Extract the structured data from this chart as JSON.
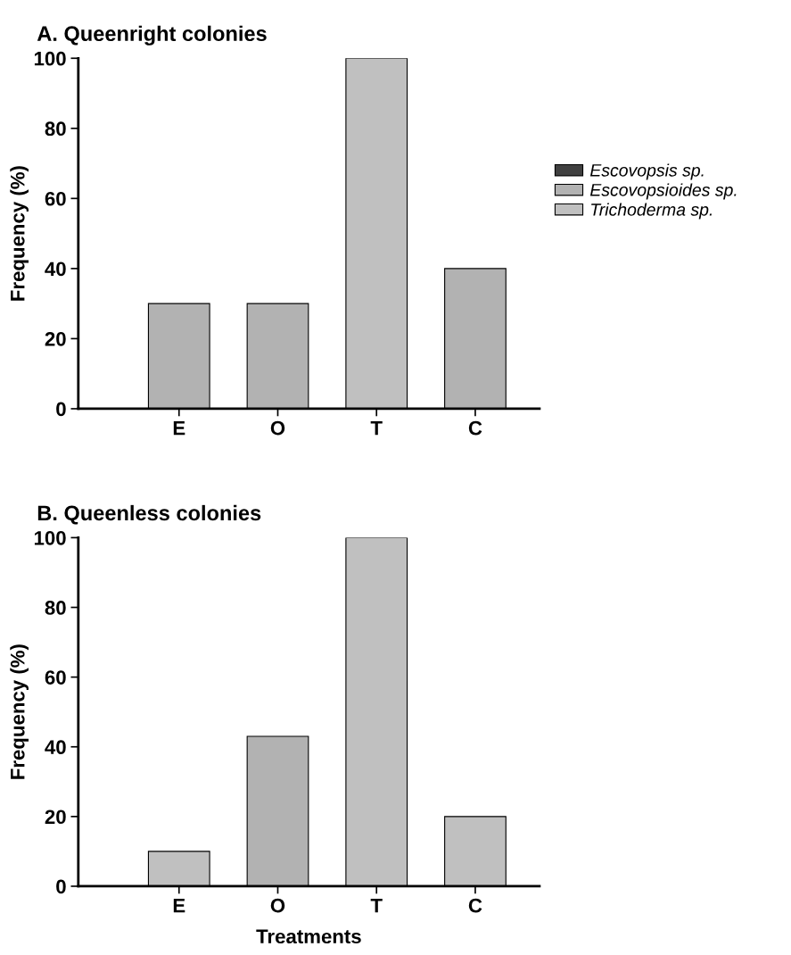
{
  "chart_data": [
    {
      "type": "bar",
      "title": "A. Queenright colonies",
      "ylabel": "Frequency (%)",
      "categories": [
        "E",
        "O",
        "T",
        "C"
      ],
      "legend": "right",
      "ylim": [
        0,
        100
      ],
      "yticks": [
        0,
        20,
        40,
        60,
        80,
        100
      ],
      "grid": false,
      "series": [
        {
          "name": "Escovopsis sp.",
          "color": "#404040",
          "values": [
            null,
            null,
            null,
            null
          ]
        },
        {
          "name": "Escovopsioides sp.",
          "color": "#b2b2b2",
          "values": [
            30,
            30,
            null,
            40
          ]
        },
        {
          "name": "Trichoderma sp.",
          "color": "#c0c0c0",
          "values": [
            null,
            null,
            100,
            null
          ]
        }
      ]
    },
    {
      "type": "bar",
      "title": "B. Queenless colonies",
      "ylabel": "Frequency (%)",
      "xlabel": "Treatments",
      "categories": [
        "E",
        "O",
        "T",
        "C"
      ],
      "ylim": [
        0,
        100
      ],
      "yticks": [
        0,
        20,
        40,
        60,
        80,
        100
      ],
      "grid": false,
      "series": [
        {
          "color": "#b2b2b2",
          "values": [
            null,
            43,
            null,
            null
          ]
        },
        {
          "color": "#c0c0c0",
          "values": [
            10,
            null,
            100,
            20
          ]
        }
      ]
    }
  ]
}
